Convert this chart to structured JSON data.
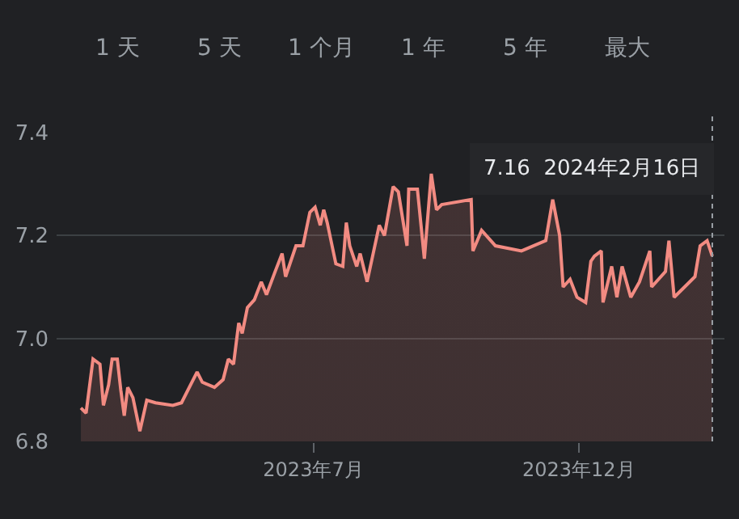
{
  "chart_data": {
    "type": "area",
    "x": [
      "2023-02-17",
      "2023-02-20",
      "2023-02-24",
      "2023-02-28",
      "2023-03-02",
      "2023-03-05",
      "2023-03-07",
      "2023-03-10",
      "2023-03-12",
      "2023-03-14",
      "2023-03-16",
      "2023-03-19",
      "2023-03-23",
      "2023-03-27",
      "2023-04-01",
      "2023-04-11",
      "2023-04-16",
      "2023-04-25",
      "2023-04-28",
      "2023-05-05",
      "2023-05-10",
      "2023-05-13",
      "2023-05-16",
      "2023-05-19",
      "2023-05-21",
      "2023-05-24",
      "2023-05-28",
      "2023-06-01",
      "2023-06-04",
      "2023-06-09",
      "2023-06-13",
      "2023-06-15",
      "2023-06-21",
      "2023-06-25",
      "2023-06-29",
      "2023-07-02",
      "2023-07-05",
      "2023-07-07",
      "2023-07-09",
      "2023-07-14",
      "2023-07-18",
      "2023-07-20",
      "2023-07-22",
      "2023-07-26",
      "2023-07-28",
      "2023-08-01",
      "2023-08-08",
      "2023-08-11",
      "2023-08-16",
      "2023-08-19",
      "2023-08-24",
      "2023-08-25",
      "2023-08-30",
      "2023-09-03",
      "2023-09-07",
      "2023-09-10",
      "2023-09-13",
      "2023-09-30",
      "2023-10-01",
      "2023-10-06",
      "2023-10-09",
      "2023-10-14",
      "2023-10-16",
      "2023-10-27",
      "2023-10-29",
      "2023-11-02",
      "2023-11-10",
      "2023-11-12",
      "2023-11-16",
      "2023-11-20",
      "2023-11-22",
      "2023-11-26",
      "2023-11-30",
      "2023-12-05",
      "2023-12-08",
      "2023-12-10",
      "2023-12-14",
      "2023-12-15",
      "2023-12-20",
      "2023-12-23",
      "2023-12-26",
      "2023-12-31",
      "2024-01-05",
      "2024-01-11",
      "2024-01-12",
      "2024-01-20",
      "2024-01-22",
      "2024-01-25",
      "2024-01-31",
      "2024-02-06",
      "2024-02-09",
      "2024-02-13",
      "2024-02-16"
    ],
    "series": [
      {
        "color": "#f28b82",
        "values": [
          6.865,
          6.855,
          6.96,
          6.95,
          6.87,
          6.91,
          6.96,
          6.96,
          6.9,
          6.85,
          6.905,
          6.885,
          6.82,
          6.88,
          6.875,
          6.87,
          6.875,
          6.935,
          6.915,
          6.905,
          6.92,
          6.96,
          6.95,
          7.03,
          7.01,
          7.06,
          7.075,
          7.11,
          7.085,
          7.13,
          7.165,
          7.12,
          7.18,
          7.18,
          7.245,
          7.255,
          7.22,
          7.25,
          7.225,
          7.145,
          7.14,
          7.225,
          7.18,
          7.14,
          7.165,
          7.11,
          7.22,
          7.2,
          7.295,
          7.285,
          7.18,
          7.29,
          7.29,
          7.155,
          7.32,
          7.25,
          7.26,
          7.27,
          7.17,
          7.21,
          null,
          7.18,
          null,
          null,
          7.17,
          null,
          null,
          7.19,
          7.27,
          7.2,
          7.1,
          7.115,
          7.08,
          7.07,
          7.15,
          7.16,
          7.17,
          7.07,
          7.14,
          7.08,
          7.14,
          7.08,
          7.11,
          7.17,
          7.1,
          7.13,
          7.19,
          7.08,
          7.1,
          7.12,
          7.18,
          7.19,
          7.16
        ]
      }
    ],
    "xlim": [
      "2023-02-03",
      "2024-02-23"
    ],
    "xticks": [
      {
        "value": "2023-07-01",
        "label": "2023年7月"
      },
      {
        "value": "2023-12-01",
        "label": "2023年12月"
      }
    ],
    "ylim": [
      6.8,
      7.4
    ],
    "yticks": [
      6.8,
      {
        "value": 7.0,
        "label": "7.0"
      },
      7.2,
      7.4
    ],
    "grid": "y",
    "marker": "none",
    "line_style": "solid",
    "ref_lines": [
      {
        "axis": "x",
        "value": "2024-02-16",
        "line_style": "dotted",
        "color": "#9aa0a6"
      }
    ],
    "annotations": [
      "1 天",
      "5 天",
      "1 个月",
      "1 年",
      "5 年",
      "最大",
      "7.16  2024年2月16日"
    ]
  }
}
